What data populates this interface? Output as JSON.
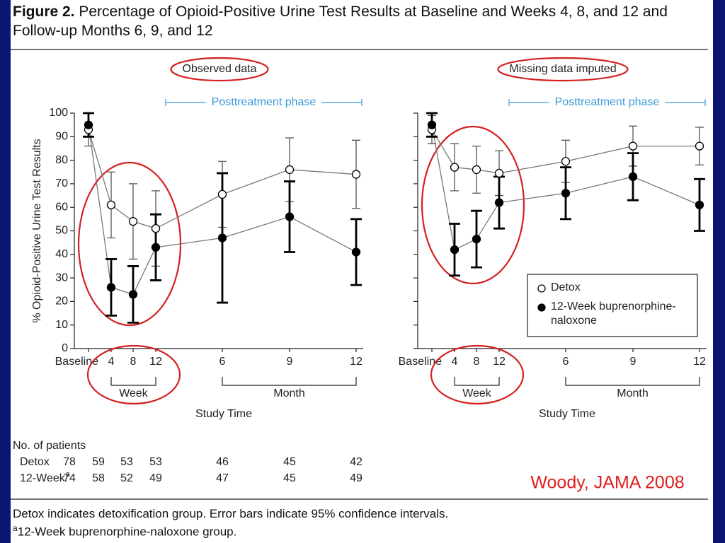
{
  "figure": {
    "label": "Figure 2.",
    "title": "Percentage of Opioid-Positive Urine Test Results at Baseline and Weeks 4, 8, and 12 and Follow-up Months 6, 9, and 12"
  },
  "chart_data": [
    {
      "type": "line",
      "subtitle": "Observed data",
      "annotation": "Posttreatment phase",
      "y_label": "% Opioid-Positive Urine Test Results",
      "x_label": "Study Time",
      "categories": [
        "Baseline",
        "4",
        "8",
        "12",
        "6",
        "9",
        "12"
      ],
      "group_labels": [
        "Week",
        "Month"
      ],
      "ylim": [
        0,
        100
      ],
      "yticks": [
        0,
        10,
        20,
        30,
        40,
        50,
        60,
        70,
        80,
        90,
        100
      ],
      "ytick_labels": true,
      "legend": false,
      "series": [
        {
          "color": "#555555",
          "fill": "#ffffff",
          "values": [
            93,
            61,
            54,
            51,
            65.5,
            76,
            74
          ],
          "errors": [
            7,
            14,
            16,
            16,
            14,
            13.5,
            14.5
          ]
        },
        {
          "color": "#000000",
          "fill": "#000000",
          "values": [
            95,
            26,
            23,
            43,
            47,
            56,
            41
          ],
          "errors": [
            5,
            12,
            12,
            14,
            27.5,
            15,
            14
          ]
        }
      ]
    },
    {
      "type": "line",
      "subtitle": "Missing data imputed",
      "annotation": "Posttreatment phase",
      "x_label": "Study Time",
      "categories": [
        "Baseline",
        "4",
        "8",
        "12",
        "6",
        "9",
        "12"
      ],
      "group_labels": [
        "Week",
        "Month"
      ],
      "ylim": [
        0,
        100
      ],
      "yticks": [
        0,
        10,
        20,
        30,
        40,
        50,
        60,
        70,
        80,
        90,
        100
      ],
      "ytick_labels": false,
      "legend": "lower right",
      "series": [
        {
          "name": "Detox",
          "color": "#555555",
          "fill": "#ffffff",
          "values": [
            93,
            77,
            76,
            74.5,
            79.5,
            86,
            86
          ],
          "errors": [
            6,
            10,
            10,
            9.5,
            9,
            8.5,
            8
          ]
        },
        {
          "name": "12-Week buprenorphine-naloxone",
          "color": "#000000",
          "fill": "#000000",
          "values": [
            95,
            42,
            46.5,
            62,
            66,
            73,
            61
          ],
          "errors": [
            5,
            11,
            12,
            11,
            11,
            10,
            11
          ]
        }
      ]
    }
  ],
  "patients": {
    "title": "No. of patients",
    "rows": [
      {
        "label": "Detox",
        "values": [
          78,
          59,
          53,
          53,
          46,
          45,
          42
        ]
      },
      {
        "label": "12-Week",
        "mark": "a",
        "values": [
          74,
          58,
          52,
          49,
          47,
          45,
          49
        ]
      }
    ]
  },
  "footnotes": [
    {
      "text": "Detox indicates detoxification group. Error bars indicate 95% confidence intervals."
    },
    {
      "mark": "a",
      "text": "12-Week buprenorphine-naloxone group."
    }
  ],
  "citation": "Woody, JAMA 2008"
}
